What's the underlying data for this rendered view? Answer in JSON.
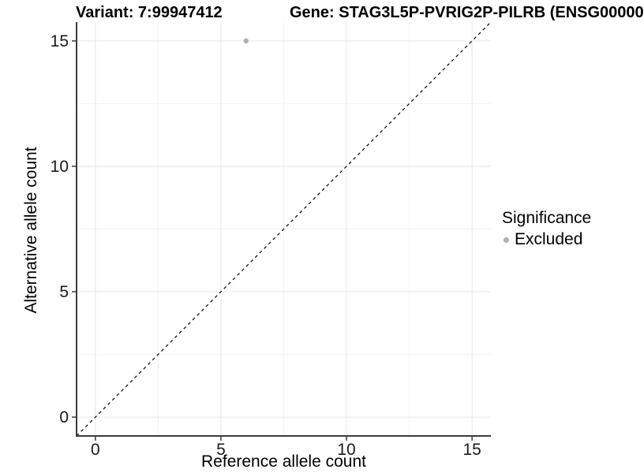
{
  "figure": {
    "left_title": "Variant: 7:99947412",
    "right_title": "Gene: STAG3L5P-PVRIG2P-PILRB (ENSG00000",
    "background": "#ffffff"
  },
  "legend": {
    "title": "Significance",
    "items": [
      {
        "label": "Excluded",
        "color": "#b0b0b0",
        "marker": "circle-icon"
      }
    ]
  },
  "chart_data": {
    "type": "scatter",
    "title": "Variant: 7:99947412",
    "xlabel": "Reference allele count",
    "ylabel": "Alternative allele count",
    "xlim": [
      -0.75,
      15.75
    ],
    "ylim": [
      -0.75,
      15.75
    ],
    "xticks": [
      0,
      5,
      10,
      15
    ],
    "yticks": [
      0,
      5,
      10,
      15
    ],
    "minor_xticks": [
      2.5,
      7.5,
      12.5
    ],
    "minor_yticks": [
      2.5,
      7.5,
      12.5
    ],
    "grid": true,
    "legend_position": "right",
    "series": [
      {
        "name": "Excluded",
        "color": "#b0b0b0",
        "marker_radius": 3.2,
        "points": [
          {
            "x": 6,
            "y": 15
          }
        ]
      }
    ],
    "reference_line": {
      "type": "identity",
      "style": "dashed",
      "color": "#000000",
      "from": [
        -0.75,
        -0.75
      ],
      "to": [
        15.75,
        15.75
      ]
    },
    "colors": {
      "major_grid": "#e6e6e6",
      "minor_grid": "#f2f2f2",
      "axis_line": "#3c3c3c",
      "tick_text": "#1a1a1a"
    }
  }
}
